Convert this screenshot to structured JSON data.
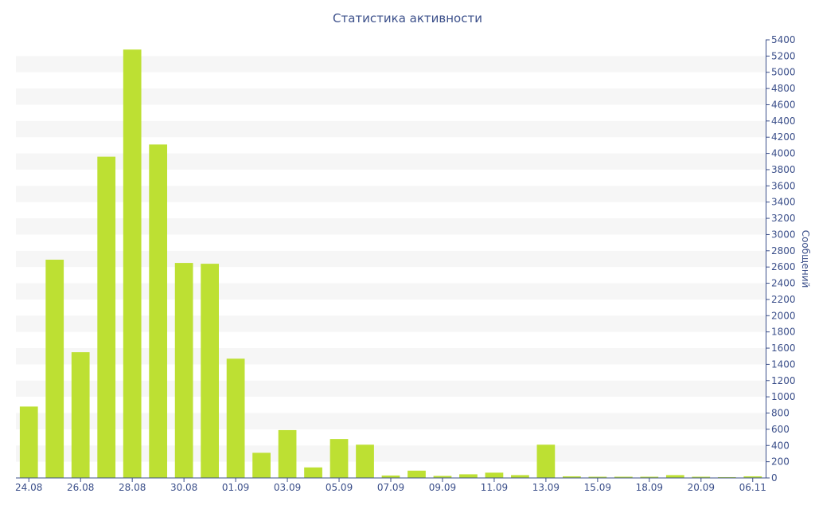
{
  "chart_data": {
    "type": "bar",
    "title": "Статистика активности",
    "xlabel": "",
    "ylabel": "Сообщений",
    "categories": [
      "24.08",
      "25.08",
      "26.08",
      "27.08",
      "28.08",
      "29.08",
      "30.08",
      "31.08",
      "01.09",
      "02.09",
      "03.09",
      "04.09",
      "05.09",
      "06.09",
      "07.09",
      "08.09",
      "09.09",
      "10.09",
      "11.09",
      "12.09",
      "13.09",
      "14.09",
      "15.09",
      "16.09",
      "18.09",
      "19.09",
      "20.09",
      "21.09",
      "06.11"
    ],
    "x_tick_labels": [
      {
        "category": "24.08",
        "label": "24.08"
      },
      {
        "category": "26.08",
        "label": "26.08"
      },
      {
        "category": "28.08",
        "label": "28.08"
      },
      {
        "category": "30.08",
        "label": "30.08"
      },
      {
        "category": "01.09",
        "label": "01.09"
      },
      {
        "category": "03.09",
        "label": "03.09"
      },
      {
        "category": "05.09",
        "label": "05.09"
      },
      {
        "category": "07.09",
        "label": "07.09"
      },
      {
        "category": "09.09",
        "label": "09.09"
      },
      {
        "category": "11.09",
        "label": "11.09"
      },
      {
        "category": "13.09",
        "label": "13.09"
      },
      {
        "category": "15.09",
        "label": "15.09"
      },
      {
        "category": "18.09",
        "label": "18.09"
      },
      {
        "category": "20.09",
        "label": "20.09"
      },
      {
        "category": "06.11",
        "label": "06.11"
      }
    ],
    "values": [
      880,
      2690,
      1550,
      3960,
      5280,
      4110,
      2650,
      2640,
      1470,
      310,
      590,
      130,
      480,
      410,
      30,
      90,
      25,
      45,
      65,
      35,
      410,
      20,
      15,
      15,
      15,
      35,
      15,
      10,
      20
    ],
    "ylim": [
      0,
      5400
    ],
    "y_ticks": [
      0,
      200,
      400,
      600,
      800,
      1000,
      1200,
      1400,
      1600,
      1800,
      2000,
      2200,
      2400,
      2600,
      2800,
      3000,
      3200,
      3400,
      3600,
      3800,
      4000,
      4200,
      4400,
      4600,
      4800,
      5000,
      5200,
      5400
    ],
    "y_axis_side": "right",
    "grid": "horizontal alternating bands",
    "colors": {
      "bar": "#bde033",
      "band": "#f6f6f6",
      "axis": "#3b4f8a",
      "text": "#3b4f8a"
    }
  }
}
